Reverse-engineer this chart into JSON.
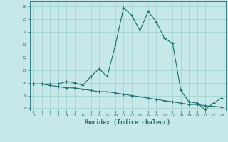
{
  "xlabel": "Humidex (Indice chaleur)",
  "ylabel": "",
  "xlim": [
    -0.5,
    23.5
  ],
  "ylim": [
    7.8,
    16.4
  ],
  "yticks": [
    8,
    9,
    10,
    11,
    12,
    13,
    14,
    15,
    16
  ],
  "xticks": [
    0,
    1,
    2,
    3,
    4,
    5,
    6,
    7,
    8,
    9,
    10,
    11,
    12,
    13,
    14,
    15,
    16,
    17,
    18,
    19,
    20,
    21,
    22,
    23
  ],
  "background_color": "#c6e8e8",
  "grid_color": "#a8d4d4",
  "line_color": "#1a6e6e",
  "line1_x": [
    0,
    1,
    2,
    3,
    4,
    5,
    6,
    7,
    8,
    9,
    10,
    11,
    12,
    13,
    14,
    15,
    16,
    17,
    18,
    19,
    20,
    21,
    22,
    23
  ],
  "line1_y": [
    9.9,
    9.9,
    9.9,
    9.9,
    10.1,
    10.0,
    9.8,
    10.5,
    11.1,
    10.5,
    13.0,
    15.9,
    15.3,
    14.1,
    15.6,
    14.8,
    13.5,
    13.1,
    9.4,
    8.5,
    8.4,
    7.9,
    8.4,
    8.8
  ],
  "line2_x": [
    0,
    1,
    2,
    3,
    4,
    5,
    6,
    7,
    8,
    9,
    10,
    11,
    12,
    13,
    14,
    15,
    16,
    17,
    18,
    19,
    20,
    21,
    22,
    23
  ],
  "line2_y": [
    9.9,
    9.9,
    9.8,
    9.7,
    9.6,
    9.6,
    9.5,
    9.4,
    9.3,
    9.3,
    9.2,
    9.1,
    9.0,
    8.9,
    8.8,
    8.7,
    8.6,
    8.5,
    8.4,
    8.3,
    8.3,
    8.2,
    8.15,
    8.1
  ]
}
